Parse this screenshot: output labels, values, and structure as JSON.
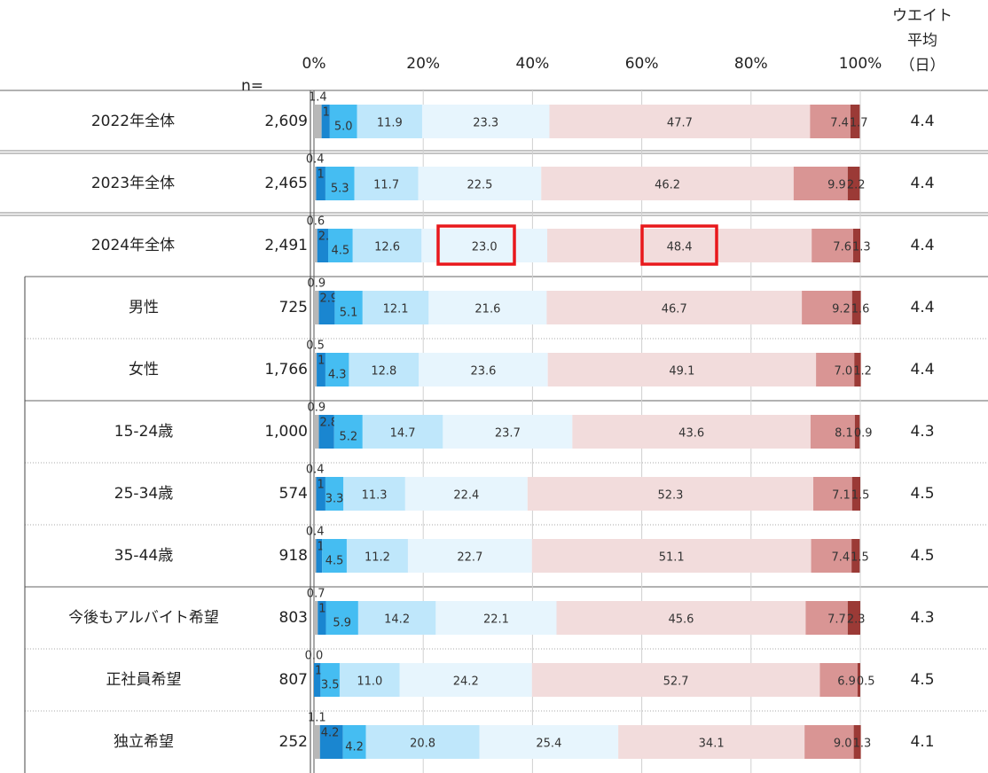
{
  "chart_data": {
    "type": "bar",
    "orientation": "horizontal",
    "stacked": true,
    "categories": [
      "2022年全体",
      "2023年全体",
      "2024年全体",
      "男性",
      "女性",
      "15-24歳",
      "25-34歳",
      "35-44歳",
      "今後もアルバイト希望",
      "正社員希望",
      "独立希望"
    ],
    "series": [
      {
        "color": "#b8b8b8",
        "values": [
          1.4,
          0.4,
          0.6,
          0.9,
          0.5,
          0.9,
          0.4,
          0.4,
          0.7,
          0.0,
          1.1
        ],
        "value_labels": [
          "1.4",
          "0.4",
          "0.6",
          "0.9",
          "0.5",
          "0.9",
          "0.4",
          "0.4",
          "0.7",
          "0.0",
          "1.1"
        ]
      },
      {
        "color": "#1a86d0",
        "values": [
          1.5,
          1.7,
          2.0,
          2.9,
          1.6,
          2.8,
          1.7,
          1.1,
          1.5,
          1.2,
          4.2
        ],
        "value_labels": [
          "1.5",
          "1.7",
          "2.0",
          "2.9",
          "1.6",
          "2.8",
          "1.7",
          "1.1",
          "1.5",
          "1.2",
          "4.2"
        ]
      },
      {
        "color": "#45bdf2",
        "values": [
          5.0,
          5.3,
          4.5,
          5.1,
          4.3,
          5.2,
          3.3,
          4.5,
          5.9,
          3.5,
          4.2
        ],
        "value_labels": [
          "5.0",
          "5.3",
          "4.5",
          "5.1",
          "4.3",
          "5.2",
          "3.3",
          "4.5",
          "5.9",
          "3.5",
          "4.2"
        ]
      },
      {
        "color": "#bfe7fb",
        "values": [
          11.9,
          11.7,
          12.6,
          12.1,
          12.8,
          14.7,
          11.3,
          11.2,
          14.2,
          11.0,
          20.8
        ],
        "value_labels": [
          "11.9",
          "11.7",
          "12.6",
          "12.1",
          "12.8",
          "14.7",
          "11.3",
          "11.2",
          "14.2",
          "11.0",
          "20.8"
        ]
      },
      {
        "color": "#e7f5fd",
        "values": [
          23.3,
          22.5,
          23.0,
          21.6,
          23.6,
          23.7,
          22.4,
          22.7,
          22.1,
          24.2,
          25.4
        ],
        "value_labels": [
          "23.3",
          "22.5",
          "23.0",
          "21.6",
          "23.6",
          "23.7",
          "22.4",
          "22.7",
          "22.1",
          "24.2",
          "25.4"
        ]
      },
      {
        "color": "#f2dcdc",
        "values": [
          47.7,
          46.2,
          48.4,
          46.7,
          49.1,
          43.6,
          52.3,
          51.1,
          45.6,
          52.7,
          34.1
        ],
        "value_labels": [
          "47.7",
          "46.2",
          "48.4",
          "46.7",
          "49.1",
          "43.6",
          "52.3",
          "51.1",
          "45.6",
          "52.7",
          "34.1"
        ]
      },
      {
        "color": "#d99594",
        "values": [
          7.4,
          9.9,
          7.6,
          9.2,
          7.0,
          8.1,
          7.1,
          7.4,
          7.7,
          6.9,
          9.0
        ],
        "value_labels": [
          "7.4",
          "9.9",
          "7.6",
          "9.2",
          "7.0",
          "8.1",
          "7.1",
          "7.4",
          "7.7",
          "6.9",
          "9.0"
        ]
      },
      {
        "color": "#9b3a36",
        "values": [
          1.7,
          2.2,
          1.3,
          1.6,
          1.2,
          0.9,
          1.5,
          1.5,
          2.3,
          0.5,
          1.3
        ],
        "value_labels": [
          "1.7",
          "2.2",
          "1.3",
          "1.6",
          "1.2",
          "0.9",
          "1.5",
          "1.5",
          "2.3",
          "0.5",
          "1.3"
        ]
      }
    ],
    "xlim": [
      0,
      100
    ],
    "xticks": [
      {
        "value": 0,
        "label": "0%"
      },
      {
        "value": 20,
        "label": "20%"
      },
      {
        "value": 40,
        "label": "40%"
      },
      {
        "value": 60,
        "label": "60%"
      },
      {
        "value": 80,
        "label": "80%"
      },
      {
        "value": 100,
        "label": "100%"
      }
    ],
    "grid": true,
    "n_title": "n=",
    "n": {
      "values": [
        2609,
        2465,
        2491,
        725,
        1766,
        1000,
        574,
        918,
        803,
        807,
        252
      ],
      "value_labels": [
        "2,609",
        "2,465",
        "2,491",
        "725",
        "1,766",
        "1,000",
        "574",
        "918",
        "803",
        "807",
        "252"
      ]
    },
    "average": {
      "title": [
        "ウエイト",
        "平均",
        "（日）"
      ],
      "values": [
        4.4,
        4.4,
        4.4,
        4.4,
        4.4,
        4.3,
        4.5,
        4.5,
        4.3,
        4.5,
        4.1
      ]
    }
  }
}
